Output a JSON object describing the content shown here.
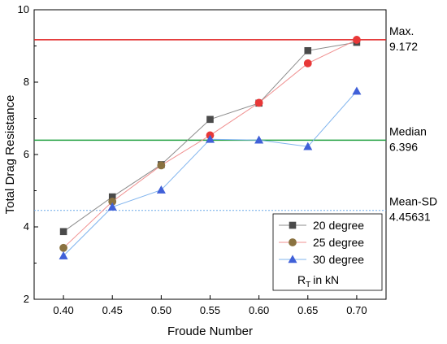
{
  "chart_data": {
    "type": "line",
    "xlabel": "Froude Number",
    "ylabel": "Total Drag Resistance",
    "xlim": [
      0.37,
      0.73
    ],
    "ylim": [
      2,
      10
    ],
    "xticks": [
      0.4,
      0.45,
      0.5,
      0.55,
      0.6,
      0.65,
      0.7
    ],
    "xtick_labels": [
      "0.40",
      "0.45",
      "0.50",
      "0.55",
      "0.60",
      "0.65",
      "0.70"
    ],
    "yticks": [
      2,
      4,
      6,
      8,
      10
    ],
    "ytick_labels": [
      "2",
      "4",
      "6",
      "8",
      "10"
    ],
    "grid": false,
    "legend_position": "bottom-right",
    "legend_note": "in kN",
    "x": [
      0.4,
      0.45,
      0.5,
      0.55,
      0.6,
      0.65,
      0.7
    ],
    "series": [
      {
        "name": "20 degree",
        "marker": "square",
        "line_color": "#8c8c8c",
        "marker_color": "#4a4a4a",
        "values": [
          3.87,
          4.83,
          5.72,
          6.97,
          7.42,
          8.87,
          9.1
        ]
      },
      {
        "name": "25 degree",
        "marker": "circle",
        "line_color": "#f09090",
        "marker_color": "#8a7240",
        "marker_color_late": "#e83838",
        "values": [
          3.42,
          4.7,
          5.7,
          6.53,
          7.43,
          8.52,
          9.17
        ]
      },
      {
        "name": "30 degree",
        "marker": "triangle",
        "line_color": "#80b4ee",
        "marker_color": "#4060d8",
        "values": [
          3.2,
          4.55,
          5.02,
          6.42,
          6.4,
          6.22,
          7.75
        ]
      }
    ],
    "reference_lines": [
      {
        "title": "Max.",
        "value_text": "9.172",
        "value": 9.172,
        "color": "#e02020",
        "style": "solid"
      },
      {
        "title": "Median",
        "value_text": "6.396",
        "value": 6.396,
        "color": "#20a040",
        "style": "solid"
      },
      {
        "title": "Mean-SD",
        "value_text": "4.45631",
        "value": 4.45631,
        "color": "#6aa8e8",
        "style": "dashed"
      }
    ]
  }
}
